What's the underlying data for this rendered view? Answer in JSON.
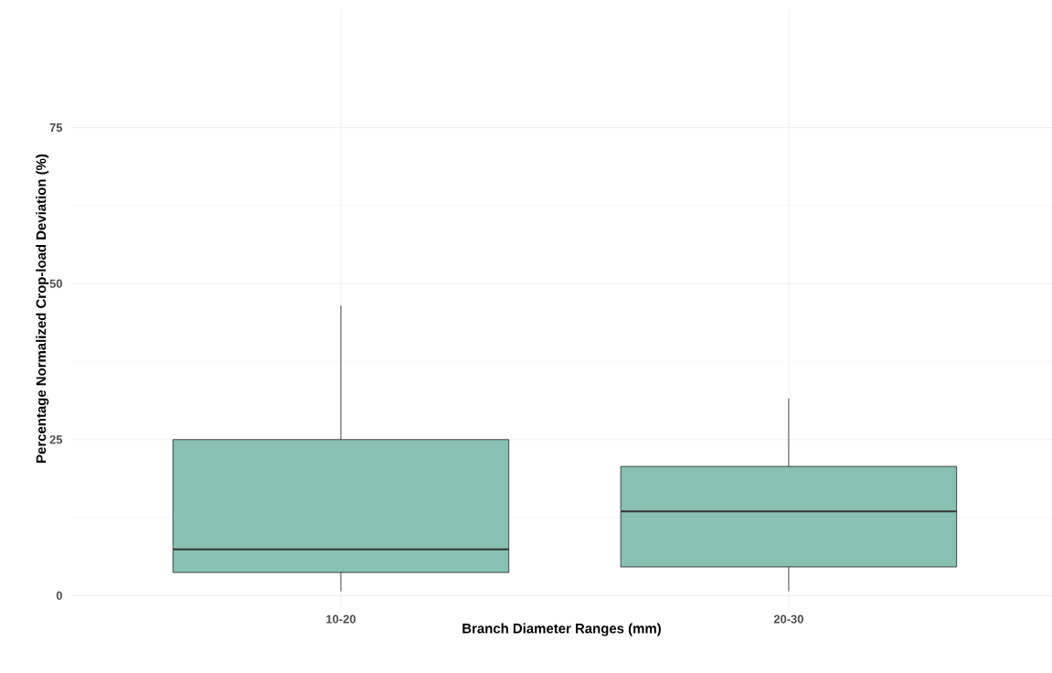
{
  "chart_data": {
    "type": "box",
    "categories": [
      "10-20",
      "20-30"
    ],
    "boxes": [
      {
        "low": 0.7,
        "q1": 3.7,
        "median": 7.4,
        "q3": 25.0,
        "high": 46.5
      },
      {
        "low": 0.7,
        "q1": 4.6,
        "median": 13.5,
        "q3": 20.7,
        "high": 31.6
      }
    ],
    "color": "#88c0b3",
    "xlabel": "Branch Diameter Ranges (mm)",
    "ylabel": "Percentage Normalized Crop-load Deviation (%)",
    "ylim": [
      -2,
      94
    ],
    "yticks": [
      0,
      25,
      50,
      75
    ],
    "grid": true
  }
}
